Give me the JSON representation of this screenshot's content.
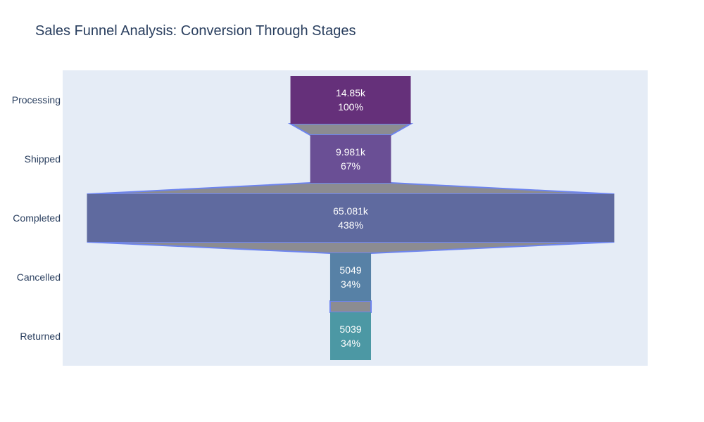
{
  "chart_data": {
    "type": "funnel",
    "title": "Sales Funnel Analysis: Conversion Through Stages",
    "categories": [
      "Processing",
      "Shipped",
      "Completed",
      "Cancelled",
      "Returned"
    ],
    "values": [
      14850,
      9981,
      65081,
      5049,
      5039
    ],
    "value_labels": [
      "14.85k",
      "9.981k",
      "65.081k",
      "5049",
      "5039"
    ],
    "percent_labels": [
      "100%",
      "67%",
      "438%",
      "34%",
      "34%"
    ],
    "colors": [
      "#65307a",
      "#6a4f95",
      "#5f6a9f",
      "#5781a6",
      "#4c98a4"
    ],
    "connector_color": "#8c8c91",
    "connector_line_color": "#6d84ee",
    "plot_background": "#e5ecf6"
  }
}
